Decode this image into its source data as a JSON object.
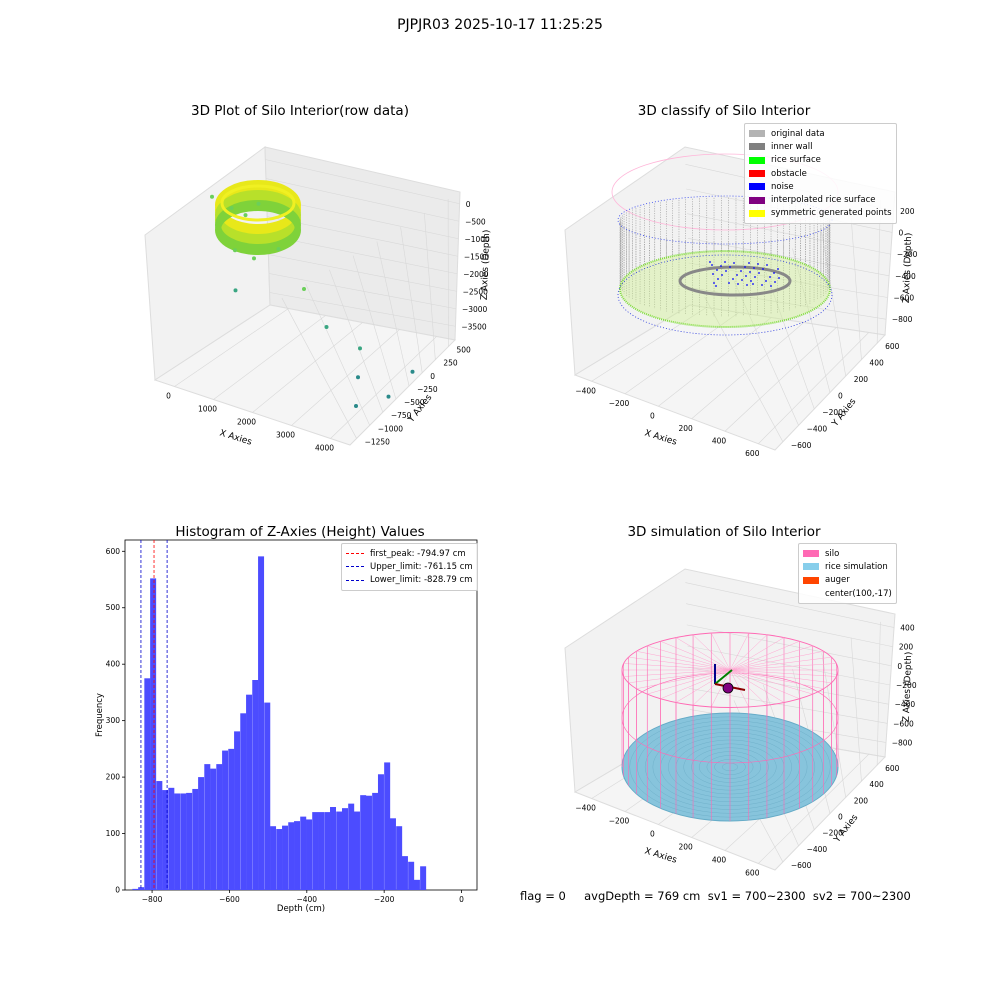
{
  "figure": {
    "suptitle": "PJPJR03 2025-10-17 11:25:25",
    "footer": "flag = 0     avgDepth = 769 cm  sv1 = 700~2300  sv2 = 700~2300"
  },
  "chart_data": [
    {
      "type": "scatter",
      "subtype": "3d",
      "title": "3D Plot of Silo Interior(row data)",
      "xlabel": "X Axies",
      "ylabel": "Y Axies",
      "zlabel": "Z Axies (Depth)",
      "x_ticks": [
        "0",
        "1000",
        "2000",
        "3000",
        "4000"
      ],
      "y_ticks": [
        "500",
        "250",
        "0",
        "−250",
        "−500",
        "−750",
        "−1000",
        "−1250"
      ],
      "z_ticks": [
        "0",
        "−500",
        "−1000",
        "−1500",
        "−2000",
        "−2500",
        "−3000",
        "−3500"
      ],
      "colormap": "viridis",
      "outlier_points": [
        {
          "x": 200,
          "y": 300,
          "z": -900
        },
        {
          "x": 500,
          "y": 200,
          "z": -1000
        },
        {
          "x": 700,
          "y": 100,
          "z": -1050
        },
        {
          "x": 1100,
          "y": 400,
          "z": -900
        },
        {
          "x": 400,
          "y": -100,
          "z": -1600
        },
        {
          "x": 800,
          "y": 0,
          "z": -1700
        },
        {
          "x": 1300,
          "y": 100,
          "z": -1500
        },
        {
          "x": 300,
          "y": -300,
          "z": -2200
        },
        {
          "x": 1600,
          "y": -200,
          "z": -2000
        },
        {
          "x": 1900,
          "y": -400,
          "z": -2500
        },
        {
          "x": 2400,
          "y": -600,
          "z": -2700
        },
        {
          "x": 3300,
          "y": -700,
          "z": -2900
        },
        {
          "x": 2200,
          "y": -900,
          "z": -3100
        },
        {
          "x": 2700,
          "y": -1000,
          "z": -3300
        },
        {
          "x": 2000,
          "y": -1200,
          "z": -3500
        }
      ]
    },
    {
      "type": "scatter",
      "subtype": "3d",
      "title": "3D classify of Silo Interior",
      "xlabel": "X Axies",
      "ylabel": "Y Axies",
      "zlabel": "Z Axies (Depth)",
      "x_ticks": [
        "−400",
        "−200",
        "0",
        "200",
        "400",
        "600"
      ],
      "y_ticks": [
        "600",
        "400",
        "200",
        "0",
        "−200",
        "−400",
        "−600"
      ],
      "z_ticks": [
        "200",
        "0",
        "−200",
        "−400",
        "−600",
        "−800"
      ],
      "legend_position": "upper right",
      "legend": [
        {
          "label": "original data",
          "color": "#b3b3b3"
        },
        {
          "label": "inner wall",
          "color": "#808080"
        },
        {
          "label": "rice surface",
          "color": "#00ff00"
        },
        {
          "label": "obstacle",
          "color": "#ff0000"
        },
        {
          "label": "noise",
          "color": "#0000ff"
        },
        {
          "label": "interpolated rice surface",
          "color": "#800080"
        },
        {
          "label": "symmetric generated points",
          "color": "#ffff00"
        }
      ]
    },
    {
      "type": "bar",
      "subtype": "histogram",
      "title": "Histogram of Z-Axies (Height) Values",
      "xlabel": "Depth (cm)",
      "ylabel": "Frequency",
      "xlim": [
        -870,
        40
      ],
      "ylim": [
        0,
        620
      ],
      "x_ticks": [
        -800,
        -600,
        -400,
        -200,
        0
      ],
      "y_ticks": [
        0,
        100,
        200,
        300,
        400,
        500,
        600
      ],
      "bar_color": "#4c4cff",
      "bin_width": 15.5,
      "bins": [
        {
          "x": -851,
          "value": 2
        },
        {
          "x": -836,
          "value": 5
        },
        {
          "x": -820,
          "value": 375
        },
        {
          "x": -805,
          "value": 552
        },
        {
          "x": -789,
          "value": 193
        },
        {
          "x": -774,
          "value": 177
        },
        {
          "x": -758,
          "value": 181
        },
        {
          "x": -743,
          "value": 171
        },
        {
          "x": -727,
          "value": 171
        },
        {
          "x": -712,
          "value": 172
        },
        {
          "x": -696,
          "value": 179
        },
        {
          "x": -681,
          "value": 200
        },
        {
          "x": -665,
          "value": 223
        },
        {
          "x": -650,
          "value": 215
        },
        {
          "x": -634,
          "value": 223
        },
        {
          "x": -619,
          "value": 247
        },
        {
          "x": -603,
          "value": 250
        },
        {
          "x": -588,
          "value": 281
        },
        {
          "x": -572,
          "value": 313
        },
        {
          "x": -557,
          "value": 346
        },
        {
          "x": -541,
          "value": 372
        },
        {
          "x": -526,
          "value": 591
        },
        {
          "x": -510,
          "value": 332
        },
        {
          "x": -495,
          "value": 113
        },
        {
          "x": -479,
          "value": 108
        },
        {
          "x": -464,
          "value": 114
        },
        {
          "x": -448,
          "value": 120
        },
        {
          "x": -433,
          "value": 122
        },
        {
          "x": -417,
          "value": 130
        },
        {
          "x": -402,
          "value": 125
        },
        {
          "x": -386,
          "value": 138
        },
        {
          "x": -371,
          "value": 138
        },
        {
          "x": -355,
          "value": 138
        },
        {
          "x": -340,
          "value": 147
        },
        {
          "x": -324,
          "value": 139
        },
        {
          "x": -309,
          "value": 145
        },
        {
          "x": -293,
          "value": 153
        },
        {
          "x": -278,
          "value": 139
        },
        {
          "x": -262,
          "value": 168
        },
        {
          "x": -247,
          "value": 167
        },
        {
          "x": -231,
          "value": 172
        },
        {
          "x": -216,
          "value": 205
        },
        {
          "x": -200,
          "value": 226
        },
        {
          "x": -185,
          "value": 127
        },
        {
          "x": -169,
          "value": 113
        },
        {
          "x": -154,
          "value": 60
        },
        {
          "x": -138,
          "value": 50
        },
        {
          "x": -123,
          "value": 18
        },
        {
          "x": -107,
          "value": 42
        }
      ],
      "vlines": [
        {
          "x": -794.97,
          "color": "#ff0000",
          "label": "first_peak: -794.97 cm"
        },
        {
          "x": -761.15,
          "color": "#0000cc",
          "label": "Upper_limit: -761.15 cm"
        },
        {
          "x": -828.79,
          "color": "#0000cc",
          "label": "Lower_limit: -828.79 cm"
        }
      ],
      "legend_position": "upper right"
    },
    {
      "type": "scatter",
      "subtype": "3d",
      "title": "3D simulation of Silo Interior",
      "xlabel": "X Axies",
      "ylabel": "Y Axies",
      "zlabel": "Z Axies (Depth)",
      "x_ticks": [
        "−400",
        "−200",
        "0",
        "200",
        "400",
        "600"
      ],
      "y_ticks": [
        "600",
        "400",
        "200",
        "0",
        "−200",
        "−400",
        "−600"
      ],
      "z_ticks": [
        "400",
        "200",
        "0",
        "−200",
        "−400",
        "−600",
        "−800"
      ],
      "legend_position": "upper right",
      "legend": [
        {
          "label": "silo",
          "color": "#ff69b4"
        },
        {
          "label": "rice simulation",
          "color": "#87ceeb"
        },
        {
          "label": "auger",
          "color": "#ff4500"
        },
        {
          "label": "center(100,-17)",
          "color": ""
        }
      ]
    }
  ]
}
